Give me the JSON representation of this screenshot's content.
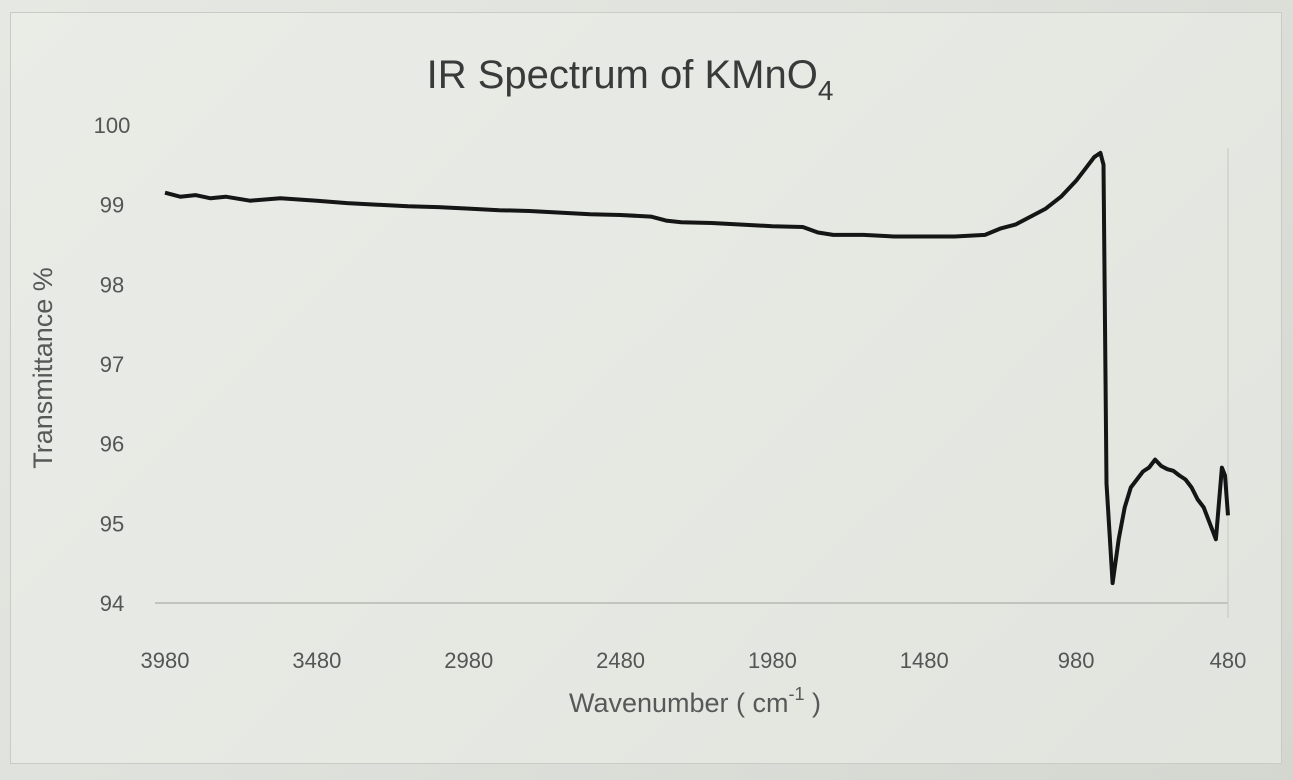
{
  "chart_data": {
    "type": "line",
    "title": "IR Spectrum of KMnO",
    "title_subscript": "4",
    "xlabel": "Wavenumber ( cm",
    "xlabel_superscript": "-1",
    "xlabel_suffix": " )",
    "ylabel": "Transmittance %",
    "xlim": [
      3980,
      480
    ],
    "ylim": [
      94,
      100
    ],
    "x_ticks": [
      "3980",
      "3480",
      "2980",
      "2480",
      "1980",
      "1480",
      "980",
      "480"
    ],
    "y_ticks": [
      "100",
      "99",
      "98",
      "97",
      "96",
      "95",
      "94"
    ],
    "grid": false,
    "legend": "none",
    "line_color": "#151515",
    "series": [
      {
        "x": [
          3980,
          3930,
          3880,
          3830,
          3780,
          3700,
          3600,
          3480,
          3380,
          3280,
          3180,
          3080,
          2980,
          2880,
          2780,
          2680,
          2580,
          2480,
          2380,
          2330,
          2280,
          2180,
          2080,
          1980,
          1880,
          1830,
          1780,
          1680,
          1580,
          1480,
          1380,
          1280,
          1230,
          1180,
          1130,
          1080,
          1030,
          980,
          950,
          920,
          900,
          890,
          880,
          860,
          840,
          820,
          800,
          780,
          760,
          740,
          720,
          700,
          680,
          660,
          640,
          620,
          600,
          580,
          560,
          540,
          520,
          500,
          490,
          480
        ],
        "y": [
          99.15,
          99.1,
          99.12,
          99.08,
          99.1,
          99.05,
          99.08,
          99.05,
          99.02,
          99.0,
          98.98,
          98.97,
          98.95,
          98.93,
          98.92,
          98.9,
          98.88,
          98.87,
          98.85,
          98.8,
          98.78,
          98.77,
          98.75,
          98.73,
          98.72,
          98.65,
          98.62,
          98.62,
          98.6,
          98.6,
          98.6,
          98.62,
          98.7,
          98.75,
          98.85,
          98.95,
          99.1,
          99.3,
          99.45,
          99.6,
          99.65,
          99.5,
          95.5,
          94.25,
          94.8,
          95.2,
          95.45,
          95.55,
          95.65,
          95.7,
          95.8,
          95.72,
          95.68,
          95.66,
          95.6,
          95.55,
          95.45,
          95.3,
          95.2,
          95.0,
          94.8,
          95.7,
          95.6,
          95.1
        ]
      }
    ]
  }
}
